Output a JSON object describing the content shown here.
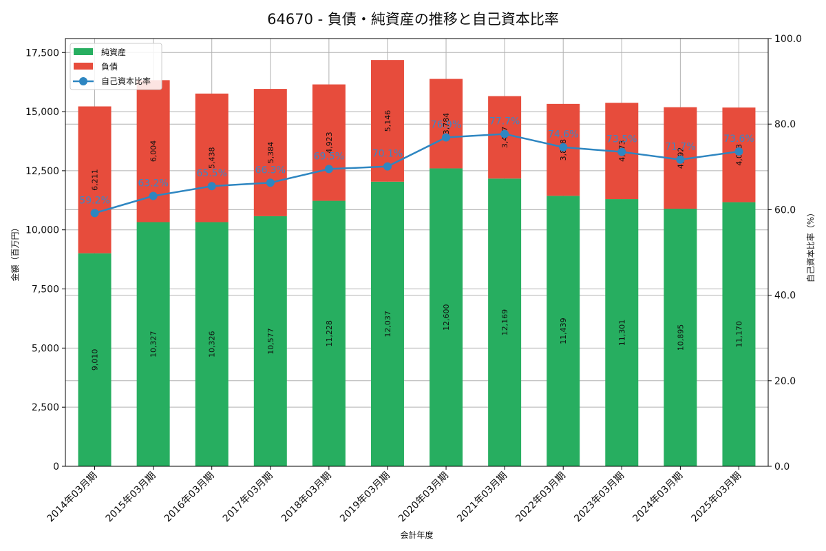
{
  "chart_data": {
    "type": "bar",
    "title": "64670 - 負債・純資産の推移と自己資本比率",
    "xlabel": "会計年度",
    "ylabel": "金額（百万円）",
    "ylabel_right": "自己資本比率（%）",
    "categories": [
      "2014年03月期",
      "2015年03月期",
      "2016年03月期",
      "2017年03月期",
      "2018年03月期",
      "2019年03月期",
      "2020年03月期",
      "2021年03月期",
      "2022年03月期",
      "2023年03月期",
      "2024年03月期",
      "2025年03月期"
    ],
    "series": [
      {
        "name": "純資産",
        "type": "bar",
        "stacked": true,
        "color": "#27ae60",
        "values": [
          9010,
          10327,
          10326,
          10577,
          11228,
          12037,
          12600,
          12169,
          11439,
          11301,
          10895,
          11170
        ]
      },
      {
        "name": "負債",
        "type": "bar",
        "stacked": true,
        "color": "#e74c3c",
        "values": [
          6211,
          6004,
          5438,
          5384,
          4923,
          5146,
          3784,
          3487,
          3888,
          4073,
          4292,
          4003
        ]
      },
      {
        "name": "自己資本比率",
        "type": "line",
        "axis": "right",
        "color": "#2e86c1",
        "values": [
          59.2,
          63.2,
          65.5,
          66.3,
          69.5,
          70.1,
          76.9,
          77.7,
          74.6,
          73.5,
          71.7,
          73.6
        ]
      }
    ],
    "ylim": [
      0,
      18090
    ],
    "ylim_right": [
      0,
      100
    ],
    "yticks": [
      "0",
      "2,500",
      "5,000",
      "7,500",
      "10,000",
      "12,500",
      "15,000",
      "17,500"
    ],
    "yticks_right": [
      "0.0",
      "20.0",
      "40.0",
      "60.0",
      "80.0",
      "100.0"
    ],
    "grid": true,
    "legend_position": "upper left"
  }
}
